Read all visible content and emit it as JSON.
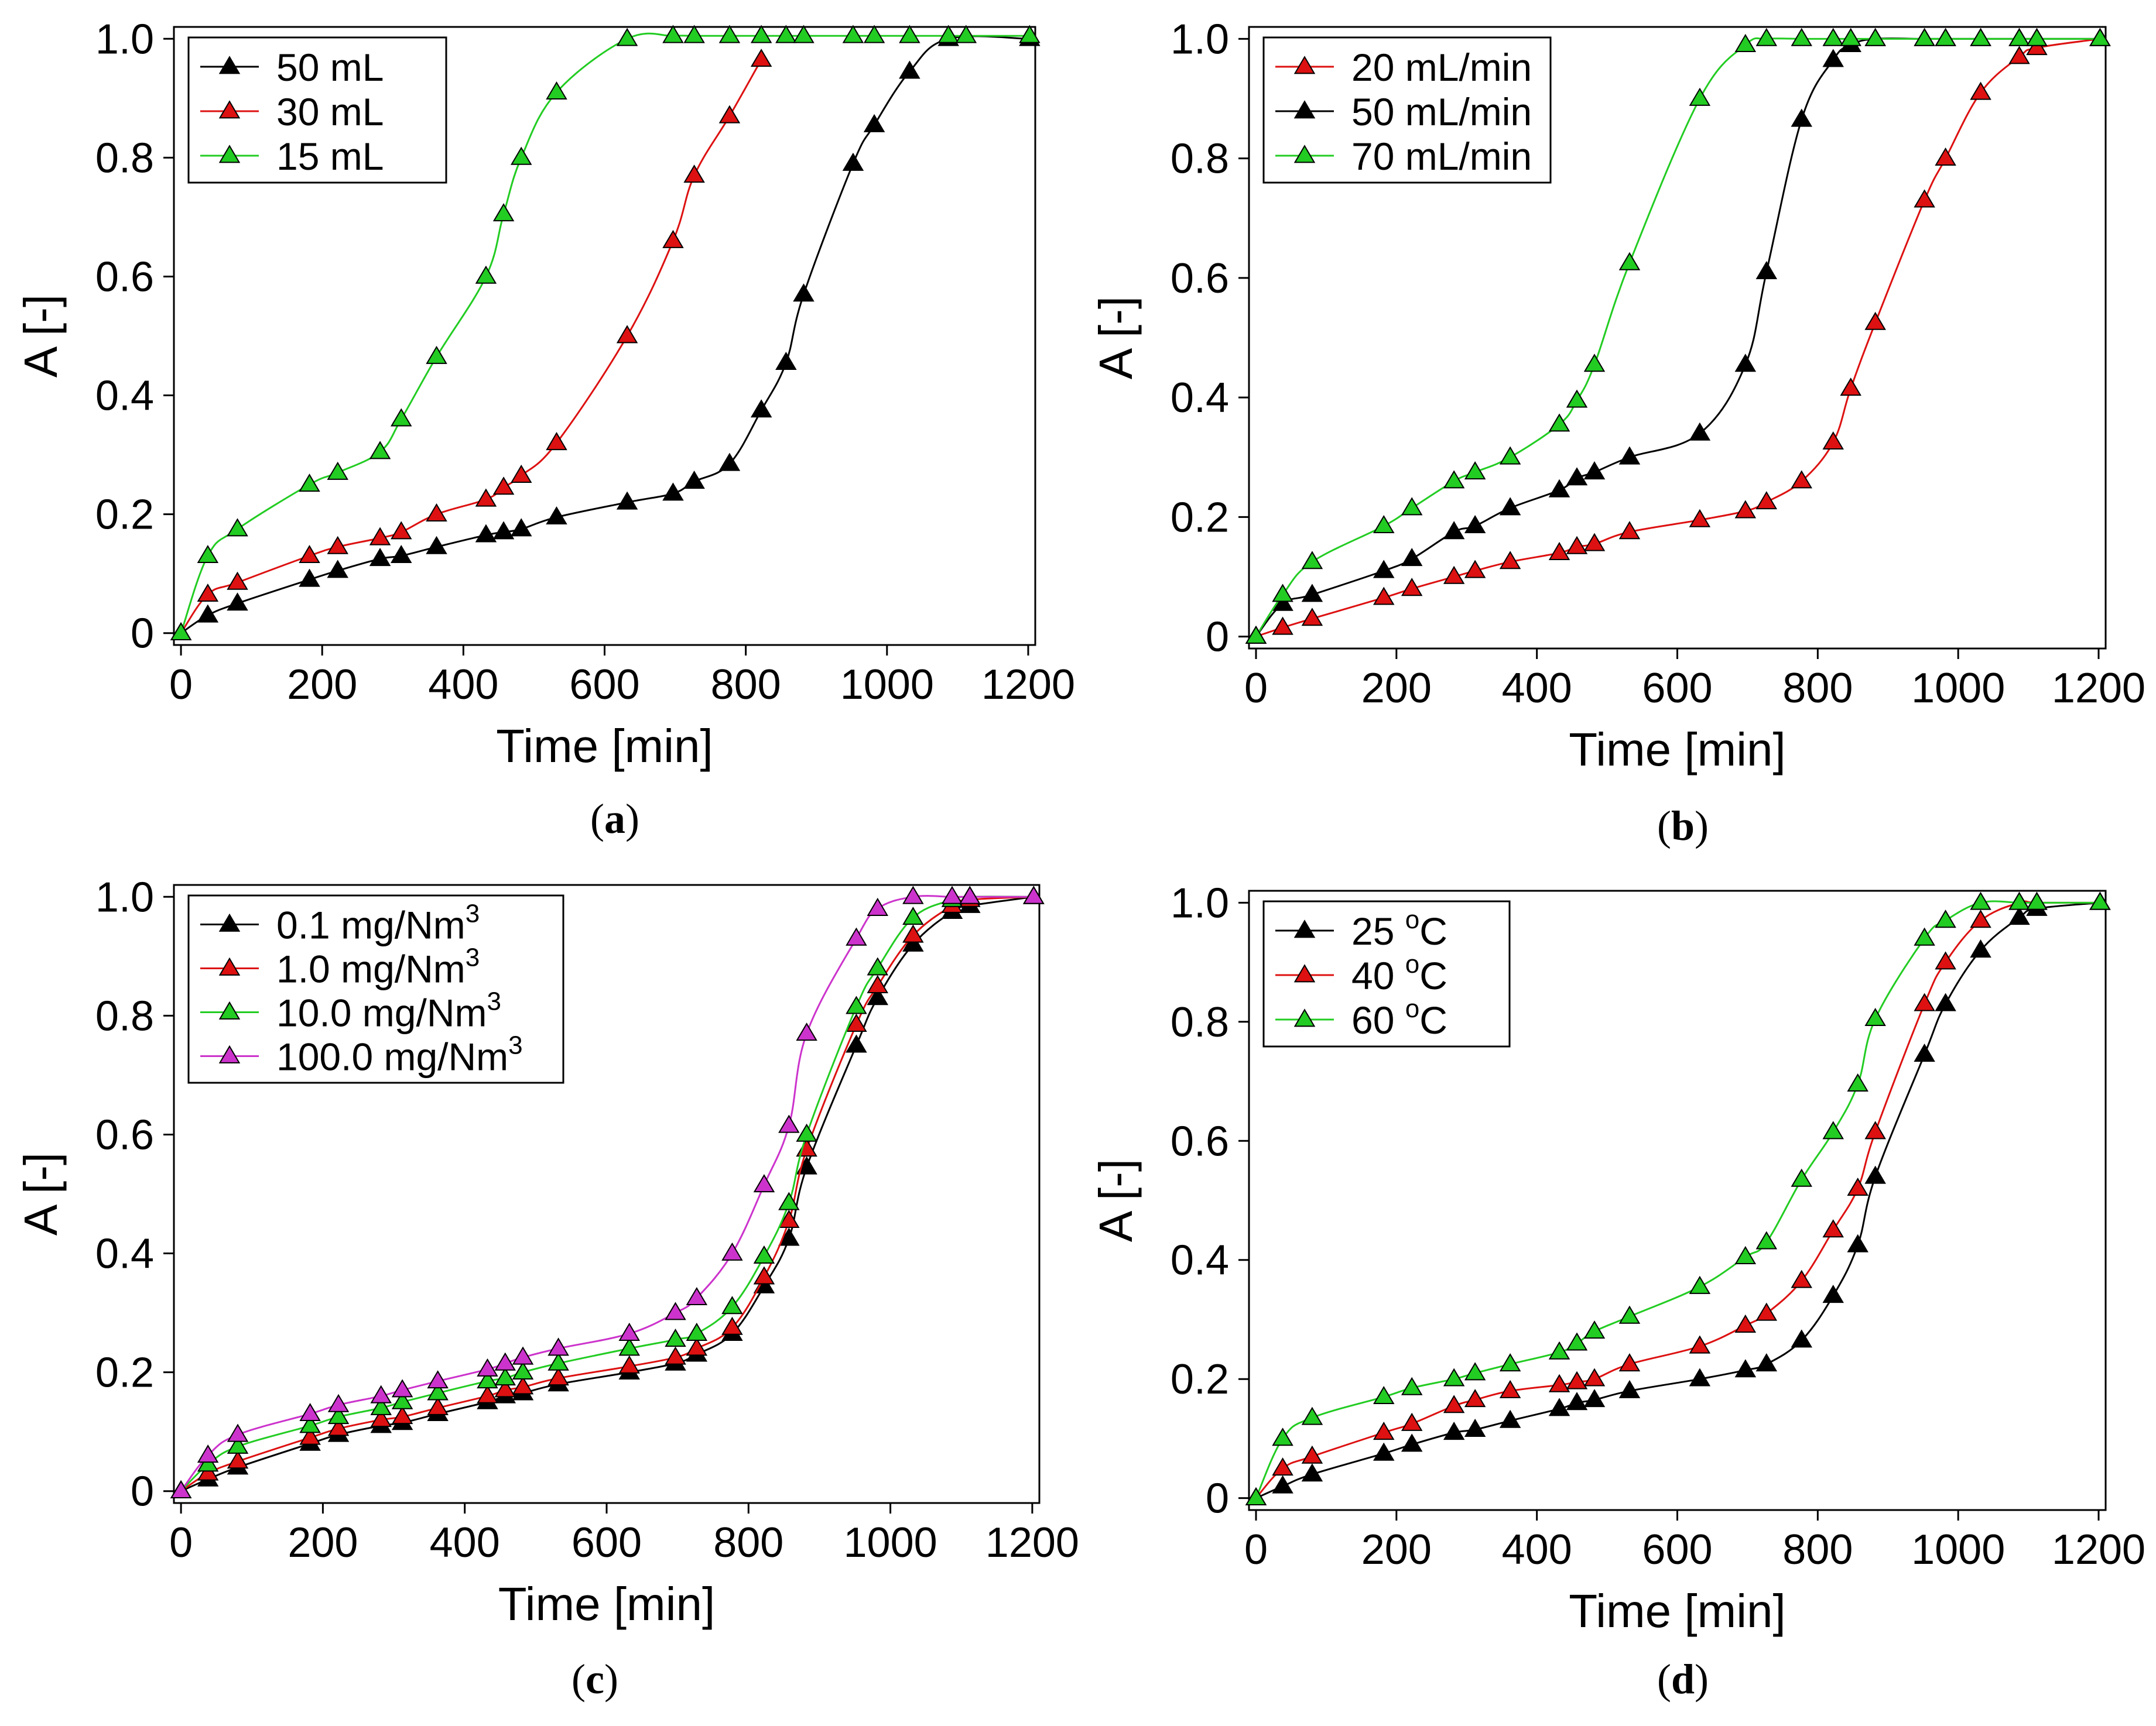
{
  "chart_data": [
    {
      "type": "line",
      "panel_label": "a",
      "xlabel": "Time [min]",
      "ylabel": "A [-]",
      "xlim": [
        -10,
        1210
      ],
      "ylim": [
        -0.02,
        1.02
      ],
      "xticks": [
        0,
        200,
        400,
        600,
        800,
        1000,
        1200
      ],
      "yticks": [
        0,
        0.2,
        0.4,
        0.6,
        0.8,
        1.0
      ],
      "ytick_labels": [
        "0",
        "0.2",
        "0.4",
        "0.6",
        "0.8",
        "1.0"
      ],
      "legend_position": "top-left",
      "series": [
        {
          "name": "50 mL",
          "color": "#000000",
          "x": [
            0,
            38,
            80,
            182,
            222,
            282,
            312,
            362,
            432,
            457,
            482,
            532,
            632,
            697,
            727,
            777,
            822,
            857,
            882,
            952,
            982,
            1032,
            1087,
            1202
          ],
          "y": [
            0,
            0.03,
            0.05,
            0.09,
            0.105,
            0.125,
            0.13,
            0.145,
            0.165,
            0.17,
            0.175,
            0.195,
            0.22,
            0.235,
            0.255,
            0.285,
            0.375,
            0.455,
            0.57,
            0.79,
            0.855,
            0.945,
            1.0,
            1.0
          ]
        },
        {
          "name": "30 mL",
          "color": "#dd1111",
          "x": [
            0,
            38,
            80,
            182,
            222,
            282,
            312,
            362,
            432,
            457,
            482,
            532,
            632,
            697,
            727,
            777,
            822
          ],
          "y": [
            0,
            0.065,
            0.085,
            0.13,
            0.145,
            0.16,
            0.17,
            0.2,
            0.225,
            0.245,
            0.265,
            0.32,
            0.5,
            0.66,
            0.77,
            0.87,
            0.965
          ]
        },
        {
          "name": "15 mL",
          "color": "#22cc22",
          "x": [
            0,
            38,
            80,
            182,
            222,
            282,
            312,
            362,
            432,
            457,
            482,
            532,
            632,
            697,
            727,
            777,
            822,
            857,
            882,
            952,
            982,
            1032,
            1087,
            1112,
            1202
          ],
          "y": [
            0,
            0.13,
            0.175,
            0.25,
            0.27,
            0.305,
            0.36,
            0.465,
            0.6,
            0.705,
            0.8,
            0.91,
            1.0,
            1.005,
            1.005,
            1.005,
            1.005,
            1.005,
            1.005,
            1.005,
            1.005,
            1.005,
            1.005,
            1.005,
            1.005
          ]
        }
      ]
    },
    {
      "type": "line",
      "panel_label": "b",
      "xlabel": "Time [min]",
      "ylabel": "A [-]",
      "xlim": [
        -10,
        1210
      ],
      "ylim": [
        -0.02,
        1.02
      ],
      "xticks": [
        0,
        200,
        400,
        600,
        800,
        1000,
        1200
      ],
      "yticks": [
        0,
        0.2,
        0.4,
        0.6,
        0.8,
        1.0
      ],
      "ytick_labels": [
        "0",
        "0.2",
        "0.4",
        "0.6",
        "0.8",
        "1.0"
      ],
      "legend_position": "top-left",
      "series": [
        {
          "name": "20 mL/min",
          "color": "#dd1111",
          "x": [
            0,
            38,
            80,
            182,
            222,
            282,
            312,
            362,
            432,
            457,
            482,
            532,
            632,
            697,
            727,
            777,
            822,
            847,
            882,
            952,
            982,
            1032,
            1087,
            1112,
            1202
          ],
          "y": [
            0,
            0.015,
            0.03,
            0.065,
            0.08,
            0.1,
            0.11,
            0.125,
            0.14,
            0.15,
            0.155,
            0.175,
            0.195,
            0.21,
            0.225,
            0.26,
            0.325,
            0.415,
            0.525,
            0.73,
            0.8,
            0.91,
            0.97,
            0.985,
            1.0
          ]
        },
        {
          "name": "50 mL/min",
          "color": "#000000",
          "x": [
            0,
            38,
            80,
            182,
            222,
            282,
            312,
            362,
            432,
            457,
            482,
            532,
            632,
            697,
            727,
            777,
            822,
            847,
            882,
            952,
            982,
            1032,
            1087,
            1112,
            1202
          ],
          "y": [
            0,
            0.055,
            0.07,
            0.11,
            0.13,
            0.175,
            0.185,
            0.215,
            0.245,
            0.265,
            0.275,
            0.3,
            0.34,
            0.455,
            0.61,
            0.865,
            0.965,
            0.99,
            1.0,
            1.0,
            1.0,
            1.0,
            1.0,
            1.0,
            1.0
          ]
        },
        {
          "name": "70 mL/min",
          "color": "#22cc22",
          "x": [
            0,
            38,
            80,
            182,
            222,
            282,
            312,
            362,
            432,
            457,
            482,
            532,
            632,
            697,
            727,
            777,
            822,
            847,
            882,
            952,
            982,
            1032,
            1087,
            1112,
            1202
          ],
          "y": [
            0,
            0.07,
            0.125,
            0.185,
            0.215,
            0.26,
            0.275,
            0.3,
            0.355,
            0.395,
            0.455,
            0.625,
            0.9,
            0.99,
            1.0,
            1.0,
            1.0,
            1.0,
            1.0,
            1.0,
            1.0,
            1.0,
            1.0,
            1.0,
            1.0
          ]
        }
      ]
    },
    {
      "type": "line",
      "panel_label": "c",
      "xlabel": "Time [min]",
      "ylabel": "A [-]",
      "xlim": [
        -10,
        1210
      ],
      "ylim": [
        -0.02,
        1.02
      ],
      "xticks": [
        0,
        200,
        400,
        600,
        800,
        1000,
        1200
      ],
      "yticks": [
        0,
        0.2,
        0.4,
        0.6,
        0.8,
        1.0
      ],
      "ytick_labels": [
        "0",
        "0.2",
        "0.4",
        "0.6",
        "0.8",
        "1.0"
      ],
      "legend_position": "top-left",
      "series": [
        {
          "name": "0.1 mg/Nm",
          "sup": "3",
          "color": "#000000",
          "x": [
            0,
            38,
            80,
            182,
            222,
            282,
            312,
            362,
            432,
            457,
            482,
            532,
            632,
            697,
            727,
            777,
            822,
            857,
            882,
            952,
            982,
            1032,
            1087,
            1112,
            1202
          ],
          "y": [
            0,
            0.02,
            0.04,
            0.08,
            0.095,
            0.11,
            0.115,
            0.13,
            0.15,
            0.16,
            0.165,
            0.18,
            0.2,
            0.215,
            0.23,
            0.265,
            0.345,
            0.425,
            0.545,
            0.75,
            0.83,
            0.92,
            0.975,
            0.985,
            1.0
          ]
        },
        {
          "name": "1.0 mg/Nm",
          "sup": "3",
          "color": "#dd1111",
          "x": [
            0,
            38,
            80,
            182,
            222,
            282,
            312,
            362,
            432,
            457,
            482,
            532,
            632,
            697,
            727,
            777,
            822,
            857,
            882,
            952,
            982,
            1032,
            1087,
            1112,
            1202
          ],
          "y": [
            0,
            0.03,
            0.05,
            0.09,
            0.105,
            0.12,
            0.125,
            0.14,
            0.16,
            0.17,
            0.175,
            0.19,
            0.21,
            0.225,
            0.24,
            0.275,
            0.36,
            0.455,
            0.575,
            0.785,
            0.85,
            0.935,
            0.985,
            0.995,
            1.0
          ]
        },
        {
          "name": "10.0 mg/Nm",
          "sup": "3",
          "color": "#22cc22",
          "x": [
            0,
            38,
            80,
            182,
            222,
            282,
            312,
            362,
            432,
            457,
            482,
            532,
            632,
            697,
            727,
            777,
            822,
            857,
            882,
            952,
            982,
            1032,
            1087,
            1112,
            1202
          ],
          "y": [
            0,
            0.045,
            0.075,
            0.11,
            0.125,
            0.14,
            0.15,
            0.165,
            0.185,
            0.19,
            0.2,
            0.215,
            0.24,
            0.255,
            0.265,
            0.31,
            0.395,
            0.485,
            0.6,
            0.815,
            0.88,
            0.965,
            0.995,
            1.0,
            1.0
          ]
        },
        {
          "name": "100.0 mg/Nm",
          "sup": "3",
          "color": "#cc33cc",
          "x": [
            0,
            38,
            80,
            182,
            222,
            282,
            312,
            362,
            432,
            457,
            482,
            532,
            632,
            697,
            727,
            777,
            822,
            857,
            882,
            952,
            982,
            1032,
            1087,
            1112,
            1202
          ],
          "y": [
            0,
            0.06,
            0.095,
            0.13,
            0.145,
            0.16,
            0.17,
            0.185,
            0.205,
            0.215,
            0.225,
            0.24,
            0.265,
            0.3,
            0.325,
            0.4,
            0.515,
            0.615,
            0.77,
            0.93,
            0.98,
            1.0,
            1.0,
            1.0,
            1.0
          ]
        }
      ]
    },
    {
      "type": "line",
      "panel_label": "d",
      "xlabel": "Time [min]",
      "ylabel": "A [-]",
      "xlim": [
        -10,
        1210
      ],
      "ylim": [
        -0.02,
        1.02
      ],
      "xticks": [
        0,
        200,
        400,
        600,
        800,
        1000,
        1200
      ],
      "yticks": [
        0,
        0.2,
        0.4,
        0.6,
        0.8,
        1.0
      ],
      "ytick_labels": [
        "0",
        "0.2",
        "0.4",
        "0.6",
        "0.8",
        "1.0"
      ],
      "legend_position": "top-left",
      "series": [
        {
          "name": "25 ",
          "sup": "o",
          "suffix": "C",
          "color": "#000000",
          "x": [
            0,
            38,
            80,
            182,
            222,
            282,
            312,
            362,
            432,
            457,
            482,
            532,
            632,
            697,
            727,
            777,
            822,
            857,
            882,
            952,
            982,
            1032,
            1087,
            1112,
            1202
          ],
          "y": [
            0,
            0.02,
            0.04,
            0.075,
            0.09,
            0.11,
            0.115,
            0.13,
            0.15,
            0.16,
            0.165,
            0.18,
            0.2,
            0.215,
            0.225,
            0.265,
            0.34,
            0.425,
            0.54,
            0.745,
            0.83,
            0.92,
            0.975,
            0.99,
            1.0
          ]
        },
        {
          "name": "40 ",
          "sup": "o",
          "suffix": "C",
          "color": "#dd1111",
          "x": [
            0,
            38,
            80,
            182,
            222,
            282,
            312,
            362,
            432,
            457,
            482,
            532,
            632,
            697,
            727,
            777,
            822,
            857,
            882,
            952,
            982,
            1032,
            1087,
            1112,
            1202
          ],
          "y": [
            0,
            0.05,
            0.07,
            0.11,
            0.125,
            0.155,
            0.165,
            0.18,
            0.19,
            0.195,
            0.2,
            0.225,
            0.255,
            0.29,
            0.31,
            0.365,
            0.45,
            0.52,
            0.615,
            0.83,
            0.9,
            0.97,
            1.0,
            1.0,
            1.0
          ]
        },
        {
          "name": "60 ",
          "sup": "o",
          "suffix": "C",
          "color": "#22cc22",
          "x": [
            0,
            38,
            80,
            182,
            222,
            282,
            312,
            362,
            432,
            457,
            482,
            532,
            632,
            697,
            727,
            777,
            822,
            857,
            882,
            952,
            982,
            1032,
            1087,
            1112,
            1202
          ],
          "y": [
            0,
            0.1,
            0.135,
            0.17,
            0.185,
            0.2,
            0.21,
            0.225,
            0.245,
            0.26,
            0.28,
            0.305,
            0.355,
            0.405,
            0.43,
            0.535,
            0.615,
            0.695,
            0.805,
            0.94,
            0.97,
            1.0,
            1.0,
            1.0,
            1.0
          ]
        }
      ]
    }
  ]
}
